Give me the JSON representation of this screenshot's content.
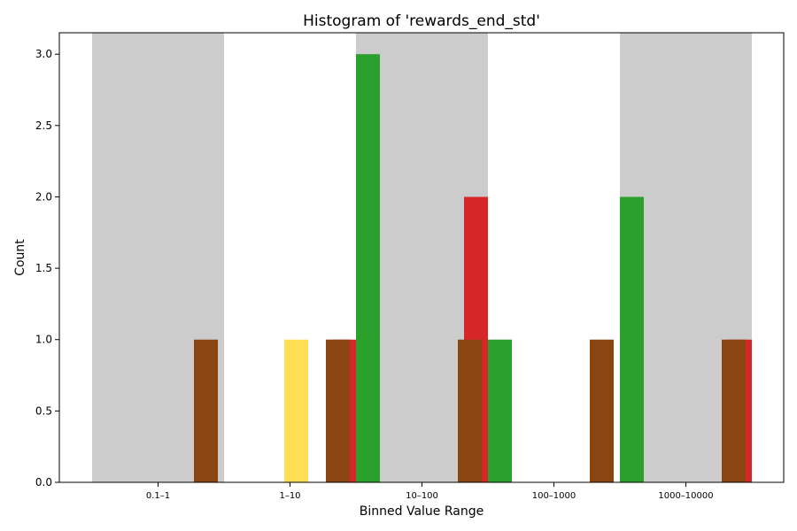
{
  "chart_data": {
    "type": "bar",
    "title": "Histogram of 'rewards_end_std'",
    "xlabel": "Binned Value Range",
    "ylabel": "Count",
    "categories": [
      "0.1–1",
      "1–10",
      "10–100",
      "100–1000",
      "1000–10000"
    ],
    "ylim": [
      0,
      3.15
    ],
    "yticks": [
      "0.0",
      "0.5",
      "1.0",
      "1.5",
      "2.0",
      "2.5",
      "3.0"
    ],
    "shaded_bins": [
      0,
      2,
      4
    ],
    "shade_color": "#cccccc",
    "grid": false,
    "legend": "none",
    "series": [
      {
        "color": "#ffdd55",
        "values": [
          0,
          1,
          0,
          0,
          0
        ]
      },
      {
        "color": "#2ca02c",
        "values": [
          0,
          0,
          3,
          1,
          2
        ]
      },
      {
        "color": "#d62728",
        "values": [
          0,
          1,
          2,
          0,
          1
        ]
      },
      {
        "color": "#8b4513",
        "values": [
          1,
          1,
          1,
          1,
          1
        ]
      }
    ]
  }
}
